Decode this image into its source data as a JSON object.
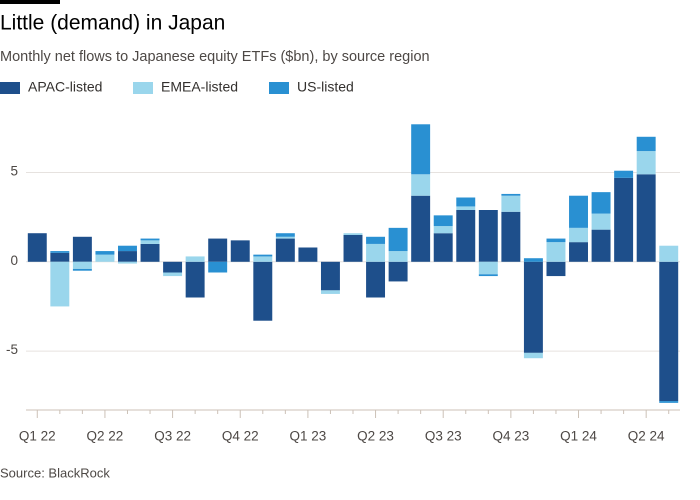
{
  "chart_data": {
    "type": "stacked_bar",
    "title": "Little (demand) in Japan",
    "subtitle": "Monthly net flows to Japanese equity ETFs ($bn), by source region",
    "source": "Source: BlackRock",
    "categories": [
      "Q1 22",
      null,
      null,
      "Q2 22",
      null,
      null,
      "Q3 22",
      null,
      null,
      "Q4 22",
      null,
      null,
      "Q1 23",
      null,
      null,
      "Q2 23",
      null,
      null,
      "Q3 23",
      null,
      null,
      "Q4 23",
      null,
      null,
      "Q1 24",
      null,
      null,
      "Q2 24",
      null
    ],
    "series": [
      {
        "name": "APAC-listed",
        "color": "#1e4f8b",
        "values": [
          1.6,
          0.5,
          1.4,
          0,
          0.6,
          1.0,
          -0.6,
          -2.0,
          1.3,
          1.2,
          -3.3,
          1.3,
          0.8,
          -1.6,
          1.5,
          -2.0,
          -1.1,
          3.7,
          1.6,
          2.9,
          2.9,
          2.8,
          -5.1,
          -0.8,
          1.1,
          1.8,
          4.7,
          4.9,
          -7.8
        ]
      },
      {
        "name": "EMEA-listed",
        "color": "#9ad6ec",
        "values": [
          0,
          -2.5,
          -0.4,
          0.4,
          -0.1,
          0.2,
          -0.2,
          0.3,
          0,
          0,
          0.3,
          0.1,
          0,
          -0.2,
          0.1,
          1.0,
          0.6,
          1.2,
          0.4,
          0.2,
          -0.7,
          0.9,
          -0.3,
          1.1,
          0.8,
          0.9,
          0,
          1.3,
          0.9
        ]
      },
      {
        "name": "US-listed",
        "color": "#2990d2",
        "values": [
          0,
          0.1,
          -0.1,
          0.2,
          0.3,
          0.1,
          0,
          0,
          -0.6,
          0,
          0.1,
          0.2,
          0,
          0,
          0,
          0.4,
          1.3,
          2.8,
          0.6,
          0.5,
          -0.1,
          0.1,
          0.2,
          0.2,
          1.8,
          1.2,
          0.4,
          0.8,
          -0.1
        ]
      }
    ],
    "ylim": [
      -8.3,
      8.5
    ],
    "yticks": [
      -5,
      0,
      5
    ],
    "grid": true
  }
}
